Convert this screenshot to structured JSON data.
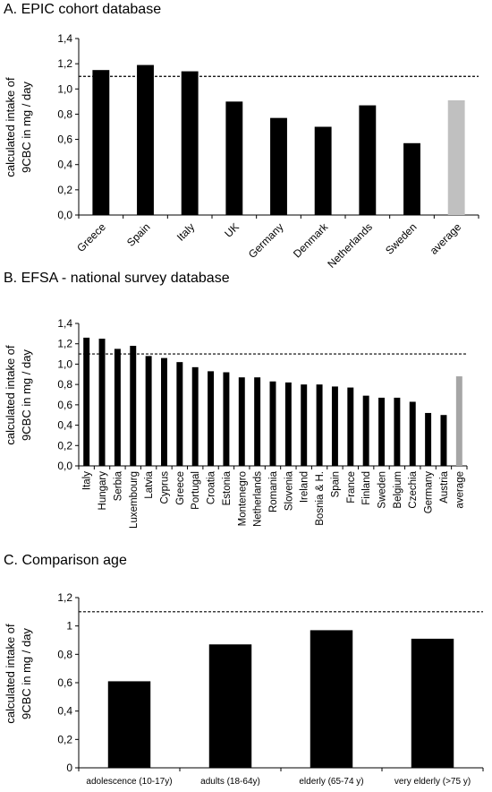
{
  "chart_data": [
    {
      "panel_title": "A. EPIC cohort database",
      "type": "bar",
      "categories": [
        "Greece",
        "Spain",
        "Italy",
        "UK",
        "Germany",
        "Denmark",
        "Netherlands",
        "Sweden",
        "average"
      ],
      "values": [
        1.15,
        1.19,
        1.14,
        0.9,
        0.77,
        0.7,
        0.87,
        0.57,
        0.91
      ],
      "bar_colors": [
        "#000000",
        "#000000",
        "#000000",
        "#000000",
        "#000000",
        "#000000",
        "#000000",
        "#000000",
        "#c0c0c0"
      ],
      "ylabel_line1": "calculated intake of",
      "ylabel_line2": "9CBC in mg / day",
      "ylim": [
        0,
        1.4
      ],
      "yticks": [
        "0,0",
        "0,2",
        "0,4",
        "0,6",
        "0,8",
        "1,0",
        "1,2",
        "1,4"
      ],
      "reference_line": 1.1,
      "grid": false,
      "x_label_rotation": "diagonal"
    },
    {
      "panel_title": "B. EFSA - national survey database",
      "type": "bar",
      "categories": [
        "Italy",
        "Hungary",
        "Serbia",
        "Luxembourg",
        "Latvia",
        "Cyprus",
        "Greece",
        "Portugal",
        "Croatia",
        "Estonia",
        "Montenegro",
        "Netherlands",
        "Romania",
        "Slovenia",
        "Ireland",
        "Bosnia & H.",
        "Spain",
        "France",
        "Finland",
        "Sweden",
        "Belgium",
        "Czechia",
        "Germany",
        "Austria",
        "average"
      ],
      "values": [
        1.26,
        1.25,
        1.15,
        1.18,
        1.08,
        1.06,
        1.02,
        0.97,
        0.93,
        0.92,
        0.87,
        0.87,
        0.83,
        0.82,
        0.8,
        0.8,
        0.78,
        0.77,
        0.69,
        0.67,
        0.67,
        0.63,
        0.52,
        0.5,
        0.88
      ],
      "bar_colors": [
        "#000000",
        "#000000",
        "#000000",
        "#000000",
        "#000000",
        "#000000",
        "#000000",
        "#000000",
        "#000000",
        "#000000",
        "#000000",
        "#000000",
        "#000000",
        "#000000",
        "#000000",
        "#000000",
        "#000000",
        "#000000",
        "#000000",
        "#000000",
        "#000000",
        "#000000",
        "#000000",
        "#000000",
        "#a6a6a6"
      ],
      "ylabel_line1": "calculated intake of",
      "ylabel_line2": "9CBC in mg / day",
      "ylim": [
        0,
        1.4
      ],
      "yticks": [
        "0,0",
        "0,2",
        "0,4",
        "0,6",
        "0,8",
        "1,0",
        "1,2",
        "1,4"
      ],
      "reference_line": 1.1,
      "grid": false,
      "x_label_rotation": "vertical"
    },
    {
      "panel_title": "C. Comparison age",
      "type": "bar",
      "categories": [
        "adolescence (10-17y)",
        "adults (18-64y)",
        "elderly (65-74 y)",
        "very elderly (>75 y)"
      ],
      "values": [
        0.61,
        0.87,
        0.97,
        0.91
      ],
      "bar_colors": [
        "#000000",
        "#000000",
        "#000000",
        "#000000"
      ],
      "ylabel_line1": "calculated intake of",
      "ylabel_line2": "9CBC in mg / day",
      "ylim": [
        0,
        1.2
      ],
      "yticks": [
        "0",
        "0,2",
        "0,4",
        "0,6",
        "0,8",
        "1",
        "1,2"
      ],
      "reference_line": 1.1,
      "grid": false,
      "x_label_rotation": "horizontal"
    }
  ]
}
